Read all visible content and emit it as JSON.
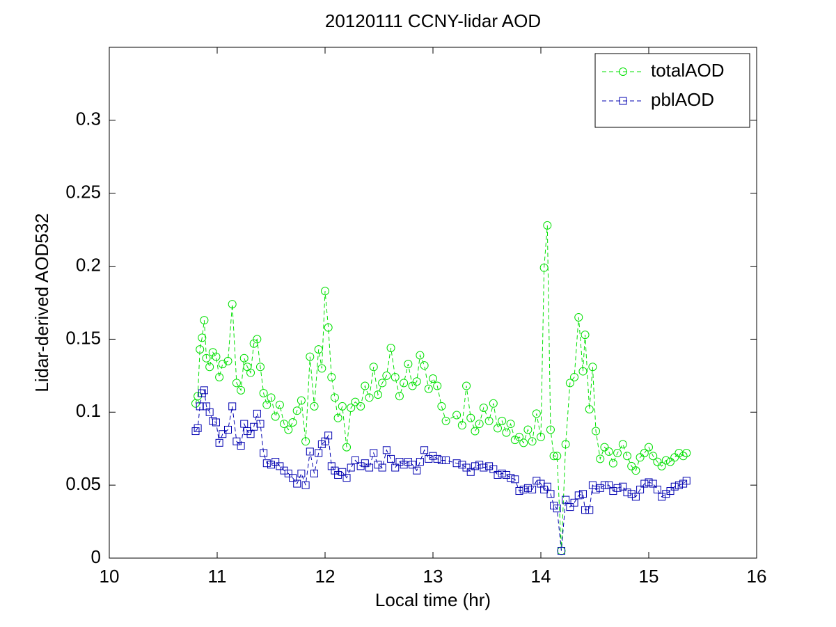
{
  "chart_data": {
    "type": "line",
    "title": "20120111 CCNY-lidar AOD",
    "xlabel": "Local time (hr)",
    "ylabel": "Lidar-derived AOD532",
    "xlim": [
      10,
      16
    ],
    "xticks": [
      10,
      11,
      12,
      13,
      14,
      15,
      16
    ],
    "ylim": [
      0,
      0.35
    ],
    "yticks": [
      0,
      0.05,
      0.1,
      0.15,
      0.2,
      0.25,
      0.3
    ],
    "legend": "upper right",
    "x": [
      10.8,
      10.82,
      10.84,
      10.86,
      10.88,
      10.9,
      10.93,
      10.96,
      10.99,
      11.02,
      11.05,
      11.1,
      11.14,
      11.18,
      11.22,
      11.25,
      11.28,
      11.31,
      11.34,
      11.37,
      11.4,
      11.43,
      11.46,
      11.5,
      11.54,
      11.58,
      11.62,
      11.66,
      11.7,
      11.74,
      11.78,
      11.82,
      11.86,
      11.9,
      11.94,
      11.97,
      12.0,
      12.03,
      12.06,
      12.09,
      12.12,
      12.16,
      12.2,
      12.24,
      12.28,
      12.33,
      12.37,
      12.41,
      12.45,
      12.49,
      12.53,
      12.57,
      12.61,
      12.65,
      12.69,
      12.73,
      12.77,
      12.81,
      12.85,
      12.88,
      12.92,
      12.96,
      13.0,
      13.04,
      13.08,
      13.12,
      13.22,
      13.27,
      13.31,
      13.35,
      13.39,
      13.43,
      13.47,
      13.52,
      13.56,
      13.6,
      13.64,
      13.68,
      13.72,
      13.76,
      13.8,
      13.84,
      13.88,
      13.92,
      13.96,
      14.0,
      14.03,
      14.06,
      14.09,
      14.12,
      14.15,
      14.19,
      14.23,
      14.27,
      14.31,
      14.35,
      14.39,
      14.41,
      14.45,
      14.48,
      14.51,
      14.55,
      14.59,
      14.63,
      14.67,
      14.71,
      14.76,
      14.8,
      14.84,
      14.88,
      14.92,
      14.96,
      15.0,
      15.04,
      15.08,
      15.12,
      15.16,
      15.2,
      15.24,
      15.28,
      15.32,
      15.35
    ],
    "series": [
      {
        "name": "totalAOD",
        "color": "#00e000",
        "marker": "circle",
        "values": [
          0.106,
          0.111,
          0.143,
          0.151,
          0.163,
          0.137,
          0.131,
          0.141,
          0.138,
          0.124,
          0.133,
          0.135,
          0.174,
          0.12,
          0.115,
          0.137,
          0.131,
          0.127,
          0.147,
          0.15,
          0.131,
          0.113,
          0.105,
          0.11,
          0.097,
          0.105,
          0.092,
          0.088,
          0.093,
          0.101,
          0.108,
          0.08,
          0.138,
          0.104,
          0.143,
          0.13,
          0.183,
          0.158,
          0.124,
          0.11,
          0.096,
          0.104,
          0.076,
          0.103,
          0.107,
          0.104,
          0.118,
          0.11,
          0.131,
          0.112,
          0.12,
          0.125,
          0.144,
          0.124,
          0.111,
          0.12,
          0.133,
          0.118,
          0.121,
          0.139,
          0.132,
          0.116,
          0.123,
          0.118,
          0.104,
          0.094,
          0.098,
          0.091,
          0.118,
          0.096,
          0.087,
          0.092,
          0.103,
          0.094,
          0.106,
          0.089,
          0.094,
          0.086,
          0.092,
          0.081,
          0.083,
          0.079,
          0.088,
          0.08,
          0.099,
          0.083,
          0.199,
          0.228,
          0.088,
          0.07,
          0.07,
          0.005,
          0.078,
          0.12,
          0.124,
          0.165,
          0.128,
          0.153,
          0.102,
          0.131,
          0.087,
          0.068,
          0.076,
          0.073,
          0.065,
          0.072,
          0.078,
          0.07,
          0.063,
          0.06,
          0.069,
          0.072,
          0.076,
          0.07,
          0.066,
          0.063,
          0.067,
          0.066,
          0.069,
          0.072,
          0.07,
          0.072
        ]
      },
      {
        "name": "pblAOD",
        "color": "#0000b0",
        "marker": "square",
        "values": [
          0.087,
          0.089,
          0.104,
          0.113,
          0.115,
          0.104,
          0.1,
          0.094,
          0.093,
          0.079,
          0.085,
          0.088,
          0.104,
          0.08,
          0.077,
          0.092,
          0.087,
          0.085,
          0.09,
          0.099,
          0.092,
          0.072,
          0.065,
          0.064,
          0.066,
          0.063,
          0.06,
          0.058,
          0.055,
          0.051,
          0.058,
          0.05,
          0.073,
          0.058,
          0.072,
          0.078,
          0.08,
          0.084,
          0.063,
          0.06,
          0.057,
          0.059,
          0.055,
          0.062,
          0.067,
          0.063,
          0.065,
          0.062,
          0.072,
          0.064,
          0.062,
          0.074,
          0.068,
          0.062,
          0.066,
          0.064,
          0.066,
          0.064,
          0.06,
          0.066,
          0.074,
          0.068,
          0.07,
          0.068,
          0.067,
          0.067,
          0.065,
          0.064,
          0.062,
          0.059,
          0.063,
          0.064,
          0.062,
          0.063,
          0.061,
          0.057,
          0.058,
          0.057,
          0.055,
          0.054,
          0.046,
          0.047,
          0.048,
          0.047,
          0.053,
          0.051,
          0.047,
          0.049,
          0.044,
          0.036,
          0.034,
          0.005,
          0.04,
          0.035,
          0.038,
          0.043,
          0.044,
          0.033,
          0.033,
          0.05,
          0.047,
          0.048,
          0.05,
          0.05,
          0.046,
          0.048,
          0.049,
          0.045,
          0.044,
          0.042,
          0.047,
          0.051,
          0.052,
          0.051,
          0.047,
          0.042,
          0.044,
          0.046,
          0.049,
          0.05,
          0.051,
          0.053
        ]
      }
    ]
  }
}
